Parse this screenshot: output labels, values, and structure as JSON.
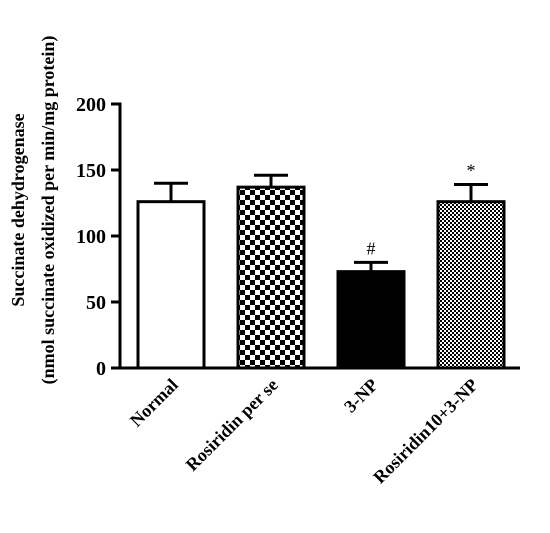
{
  "chart_data": {
    "type": "bar",
    "title": "",
    "xlabel": "",
    "ylabel_line1": "Succinate dehydrogenase",
    "ylabel_line2": "(nmol succinate oxidized per min/mg protein)",
    "ylim": [
      0,
      200
    ],
    "yticks": [
      0,
      50,
      100,
      150,
      200
    ],
    "categories": [
      "Normal",
      "Rosiridin per se",
      "3-NP",
      "Rosiridin10+3-NP"
    ],
    "values": [
      126,
      137,
      73,
      126
    ],
    "errors": [
      14,
      9,
      7,
      13
    ],
    "annotations": [
      "",
      "",
      "#",
      "*"
    ],
    "fills": [
      "white",
      "checker-coarse",
      "black",
      "checker-fine"
    ],
    "grid": false,
    "legend": "none"
  }
}
